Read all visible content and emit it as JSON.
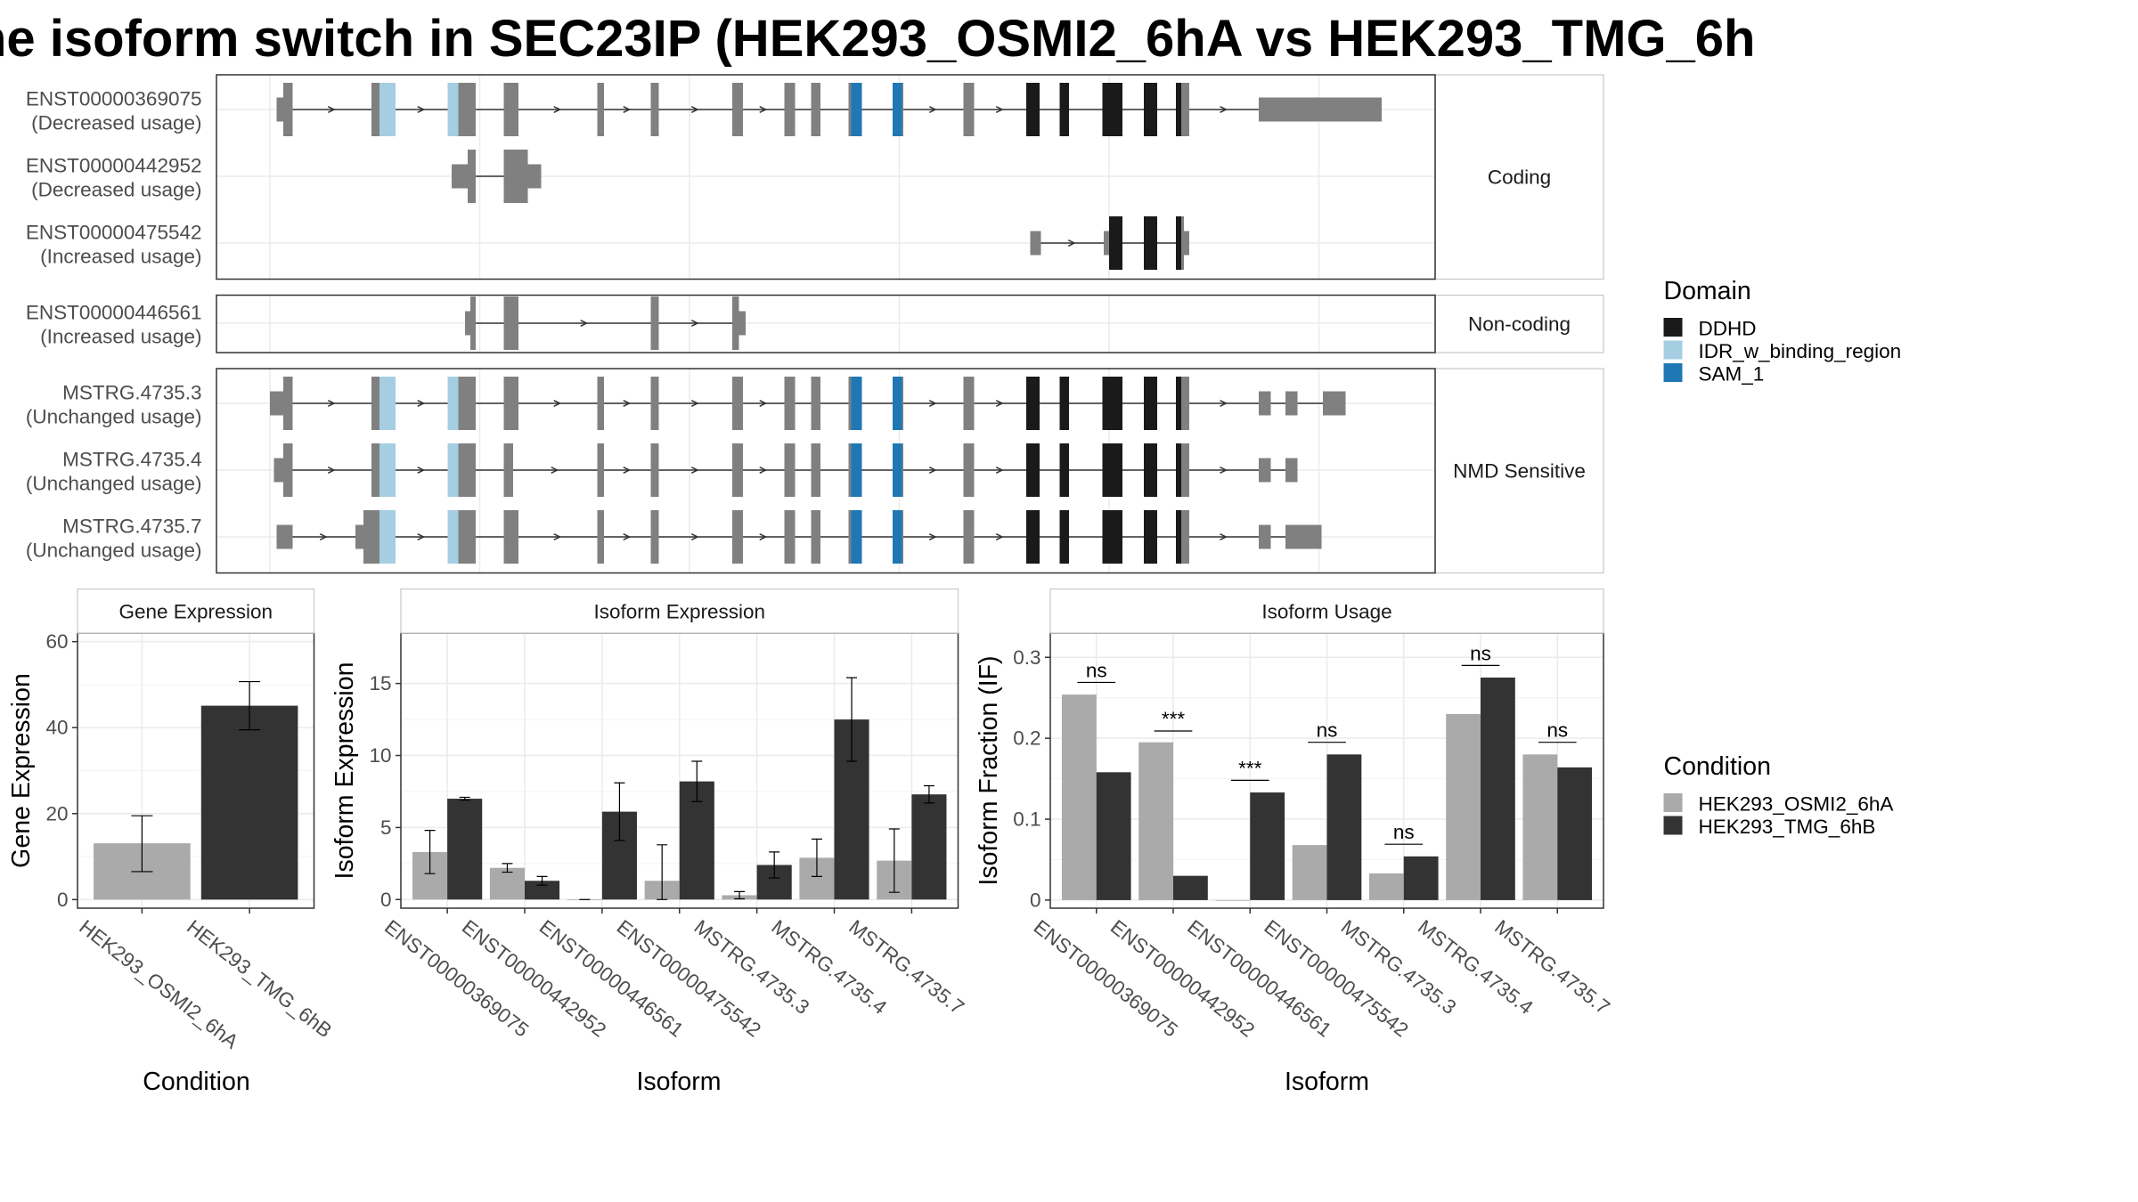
{
  "title": "ne isoform switch in SEC23IP (HEK293_OSMI2_6hA vs HEK293_TMG_6h",
  "colors": {
    "exon": "#808080",
    "utr": "#808080",
    "DDHD": "#1a1a1a",
    "IDR_w_binding_region": "#a6cee3",
    "SAM_1": "#1f78b4",
    "cond1": "#aaaaaa",
    "cond2": "#333333"
  },
  "structure": {
    "sections": [
      {
        "name": "Coding",
        "label": "Coding",
        "transcripts": [
          "ENST00000369075",
          "ENST00000442952",
          "ENST00000475542"
        ]
      },
      {
        "name": "Non-coding",
        "label": "Non-coding",
        "transcripts": [
          "ENST00000446561"
        ]
      },
      {
        "name": "NMD Sensitive",
        "label": "NMD Sensitive",
        "transcripts": [
          "MSTRG.4735.3",
          "MSTRG.4735.4",
          "MSTRG.4735.7"
        ]
      }
    ],
    "transcripts": [
      {
        "id": "ENST00000369075",
        "usage": "(Decreased usage)",
        "xmin": 210,
        "xmax": 1034,
        "utr": [
          [
            207,
            219
          ],
          [
            942,
            1034
          ]
        ],
        "exons": [
          [
            212,
            219
          ],
          [
            278,
            296
          ],
          [
            335,
            356
          ],
          [
            377,
            388
          ],
          [
            447,
            452
          ],
          [
            487,
            493
          ],
          [
            548,
            556
          ],
          [
            587,
            595
          ],
          [
            607,
            614
          ],
          [
            635,
            645
          ],
          [
            668,
            676
          ],
          [
            721,
            729
          ],
          [
            768,
            778
          ],
          [
            793,
            800
          ],
          [
            825,
            840
          ],
          [
            856,
            866
          ],
          [
            880,
            886
          ],
          [
            886,
            890
          ]
        ],
        "domains": [
          {
            "type": "IDR_w_binding_region",
            "span": [
              284,
              296
            ]
          },
          {
            "type": "IDR_w_binding_region",
            "span": [
              335,
              343
            ]
          },
          {
            "type": "SAM_1",
            "span": [
              637,
              645
            ]
          },
          {
            "type": "SAM_1",
            "span": [
              668,
              675
            ]
          },
          {
            "type": "DDHD",
            "span": [
              768,
              778
            ]
          },
          {
            "type": "DDHD",
            "span": [
              793,
              800
            ]
          },
          {
            "type": "DDHD",
            "span": [
              825,
              840
            ]
          },
          {
            "type": "DDHD",
            "span": [
              856,
              866
            ]
          },
          {
            "type": "DDHD",
            "span": [
              880,
              884
            ]
          }
        ]
      },
      {
        "id": "ENST00000442952",
        "usage": "(Decreased usage)",
        "xmin": 338,
        "xmax": 405,
        "utr": [
          [
            338,
            350
          ],
          [
            395,
            405
          ]
        ],
        "exons": [
          [
            350,
            356
          ],
          [
            377,
            395
          ]
        ],
        "domains": []
      },
      {
        "id": "ENST00000475542",
        "usage": "(Increased usage)",
        "xmin": 771,
        "xmax": 890,
        "utr": [
          [
            771,
            779
          ],
          [
            826,
            830
          ],
          [
            886,
            890
          ]
        ],
        "exons": [
          [
            830,
            840
          ],
          [
            856,
            866
          ],
          [
            880,
            886
          ]
        ],
        "domains": [
          {
            "type": "DDHD",
            "span": [
              830,
              840
            ]
          },
          {
            "type": "DDHD",
            "span": [
              856,
              866
            ]
          },
          {
            "type": "DDHD",
            "span": [
              880,
              884
            ]
          }
        ]
      },
      {
        "id": "ENST00000446561",
        "usage": "(Increased usage)",
        "xmin": 348,
        "xmax": 558,
        "utr": [
          [
            348,
            352
          ],
          [
            553,
            558
          ]
        ],
        "exons": [
          [
            352,
            356
          ],
          [
            377,
            388
          ],
          [
            487,
            493
          ],
          [
            548,
            553
          ]
        ],
        "domains": []
      },
      {
        "id": "MSTRG.4735.3",
        "usage": "(Unchanged usage)",
        "xmin": 202,
        "xmax": 1007,
        "utr": [
          [
            202,
            212
          ],
          [
            942,
            951
          ],
          [
            962,
            971
          ],
          [
            990,
            1007
          ]
        ],
        "exons": [
          [
            212,
            219
          ],
          [
            278,
            296
          ],
          [
            335,
            356
          ],
          [
            377,
            388
          ],
          [
            447,
            452
          ],
          [
            487,
            493
          ],
          [
            548,
            556
          ],
          [
            587,
            595
          ],
          [
            607,
            614
          ],
          [
            635,
            645
          ],
          [
            668,
            676
          ],
          [
            721,
            729
          ],
          [
            768,
            778
          ],
          [
            793,
            800
          ],
          [
            825,
            840
          ],
          [
            856,
            866
          ],
          [
            880,
            886
          ],
          [
            886,
            890
          ]
        ],
        "domains": [
          {
            "type": "IDR_w_binding_region",
            "span": [
              284,
              296
            ]
          },
          {
            "type": "IDR_w_binding_region",
            "span": [
              335,
              343
            ]
          },
          {
            "type": "SAM_1",
            "span": [
              637,
              645
            ]
          },
          {
            "type": "SAM_1",
            "span": [
              668,
              675
            ]
          },
          {
            "type": "DDHD",
            "span": [
              768,
              778
            ]
          },
          {
            "type": "DDHD",
            "span": [
              793,
              800
            ]
          },
          {
            "type": "DDHD",
            "span": [
              825,
              840
            ]
          },
          {
            "type": "DDHD",
            "span": [
              856,
              866
            ]
          },
          {
            "type": "DDHD",
            "span": [
              880,
              884
            ]
          }
        ]
      },
      {
        "id": "MSTRG.4735.4",
        "usage": "(Unchanged usage)",
        "xmin": 205,
        "xmax": 971,
        "utr": [
          [
            205,
            212
          ],
          [
            942,
            951
          ],
          [
            962,
            971
          ]
        ],
        "exons": [
          [
            212,
            219
          ],
          [
            278,
            296
          ],
          [
            335,
            356
          ],
          [
            377,
            384
          ],
          [
            447,
            452
          ],
          [
            487,
            493
          ],
          [
            548,
            556
          ],
          [
            587,
            595
          ],
          [
            607,
            614
          ],
          [
            635,
            645
          ],
          [
            668,
            676
          ],
          [
            721,
            729
          ],
          [
            768,
            778
          ],
          [
            793,
            800
          ],
          [
            825,
            840
          ],
          [
            856,
            866
          ],
          [
            880,
            886
          ],
          [
            886,
            890
          ]
        ],
        "domains": [
          {
            "type": "IDR_w_binding_region",
            "span": [
              284,
              296
            ]
          },
          {
            "type": "IDR_w_binding_region",
            "span": [
              335,
              343
            ]
          },
          {
            "type": "SAM_1",
            "span": [
              637,
              645
            ]
          },
          {
            "type": "SAM_1",
            "span": [
              668,
              675
            ]
          },
          {
            "type": "DDHD",
            "span": [
              768,
              778
            ]
          },
          {
            "type": "DDHD",
            "span": [
              793,
              800
            ]
          },
          {
            "type": "DDHD",
            "span": [
              825,
              840
            ]
          },
          {
            "type": "DDHD",
            "span": [
              856,
              866
            ]
          },
          {
            "type": "DDHD",
            "span": [
              880,
              884
            ]
          }
        ]
      },
      {
        "id": "MSTRG.4735.7",
        "usage": "(Unchanged usage)",
        "xmin": 207,
        "xmax": 989,
        "utr": [
          [
            207,
            219
          ],
          [
            266,
            272
          ],
          [
            942,
            951
          ],
          [
            962,
            989
          ]
        ],
        "exons": [
          [
            272,
            296
          ],
          [
            335,
            356
          ],
          [
            377,
            388
          ],
          [
            447,
            452
          ],
          [
            487,
            493
          ],
          [
            548,
            556
          ],
          [
            587,
            595
          ],
          [
            607,
            614
          ],
          [
            635,
            645
          ],
          [
            668,
            676
          ],
          [
            721,
            729
          ],
          [
            768,
            778
          ],
          [
            793,
            800
          ],
          [
            825,
            840
          ],
          [
            856,
            866
          ],
          [
            880,
            886
          ],
          [
            886,
            890
          ]
        ],
        "domains": [
          {
            "type": "IDR_w_binding_region",
            "span": [
              284,
              296
            ]
          },
          {
            "type": "IDR_w_binding_region",
            "span": [
              335,
              343
            ]
          },
          {
            "type": "SAM_1",
            "span": [
              637,
              645
            ]
          },
          {
            "type": "SAM_1",
            "span": [
              668,
              675
            ]
          },
          {
            "type": "DDHD",
            "span": [
              768,
              778
            ]
          },
          {
            "type": "DDHD",
            "span": [
              793,
              800
            ]
          },
          {
            "type": "DDHD",
            "span": [
              825,
              840
            ]
          },
          {
            "type": "DDHD",
            "span": [
              856,
              866
            ]
          },
          {
            "type": "DDHD",
            "span": [
              880,
              884
            ]
          }
        ]
      }
    ]
  },
  "legends": {
    "domain": {
      "title": "Domain",
      "items": [
        {
          "label": "DDHD",
          "key": "DDHD"
        },
        {
          "label": "IDR_w_binding_region",
          "key": "IDR_w_binding_region"
        },
        {
          "label": "SAM_1",
          "key": "SAM_1"
        }
      ]
    },
    "condition": {
      "title": "Condition",
      "items": [
        {
          "label": "HEK293_OSMI2_6hA",
          "key": "cond1"
        },
        {
          "label": "HEK293_TMG_6hB",
          "key": "cond2"
        }
      ]
    }
  },
  "chart_data": [
    {
      "type": "bar",
      "title": "Gene Expression",
      "xlabel": "Condition",
      "ylabel": "Gene Expression",
      "ylim": [
        -2,
        62
      ],
      "yticks": [
        0,
        20,
        40,
        60
      ],
      "categories": [
        "HEK293_OSMI2_6hA",
        "HEK293_TMG_6hB"
      ],
      "values": [
        13.1,
        45.1
      ],
      "error": [
        [
          6.5,
          19.5
        ],
        [
          39.5,
          50.7
        ]
      ],
      "grid": true
    },
    {
      "type": "bar",
      "title": "Isoform Expression",
      "xlabel": "Isoform",
      "ylabel": "Isoform Expression",
      "ylim": [
        -0.6,
        18.5
      ],
      "yticks": [
        0,
        5,
        10,
        15
      ],
      "categories": [
        "ENST00000369075",
        "ENST00000442952",
        "ENST00000446561",
        "ENST00000475542",
        "MSTRG.4735.3",
        "MSTRG.4735.4",
        "MSTRG.4735.7"
      ],
      "series": [
        {
          "name": "HEK293_OSMI2_6hA",
          "values": [
            3.3,
            2.2,
            0.0,
            1.3,
            0.3,
            2.9,
            2.7
          ],
          "error": [
            [
              1.8,
              4.8
            ],
            [
              1.9,
              2.5
            ],
            [
              0.0,
              0.0
            ],
            [
              0.0,
              3.8
            ],
            [
              0.05,
              0.55
            ],
            [
              1.6,
              4.2
            ],
            [
              0.5,
              4.9
            ]
          ]
        },
        {
          "name": "HEK293_TMG_6hB",
          "values": [
            7.0,
            1.3,
            6.1,
            8.2,
            2.4,
            12.5,
            7.3
          ],
          "error": [
            [
              6.9,
              7.1
            ],
            [
              1.0,
              1.6
            ],
            [
              4.1,
              8.1
            ],
            [
              6.8,
              9.6
            ],
            [
              1.5,
              3.3
            ],
            [
              9.6,
              15.4
            ],
            [
              6.7,
              7.9
            ]
          ]
        }
      ],
      "grid": true
    },
    {
      "type": "bar",
      "title": "Isoform Usage",
      "xlabel": "Isoform",
      "ylabel": "Isoform Fraction (IF)",
      "ylim": [
        -0.01,
        0.33
      ],
      "yticks": [
        0.0,
        0.1,
        0.2,
        0.3
      ],
      "categories": [
        "ENST00000369075",
        "ENST00000442952",
        "ENST00000446561",
        "ENST00000475542",
        "MSTRG.4735.3",
        "MSTRG.4735.4",
        "MSTRG.4735.7"
      ],
      "series": [
        {
          "name": "HEK293_OSMI2_6hA",
          "values": [
            0.254,
            0.195,
            0.0,
            0.068,
            0.033,
            0.23,
            0.18
          ]
        },
        {
          "name": "HEK293_TMG_6hB",
          "values": [
            0.158,
            0.03,
            0.133,
            0.18,
            0.054,
            0.275,
            0.164
          ]
        }
      ],
      "annotations": [
        {
          "category": "ENST00000369075",
          "text": "ns",
          "y": 0.269
        },
        {
          "category": "ENST00000442952",
          "text": "***",
          "y": 0.209
        },
        {
          "category": "ENST00000446561",
          "text": "***",
          "y": 0.148
        },
        {
          "category": "ENST00000475542",
          "text": "ns",
          "y": 0.195
        },
        {
          "category": "MSTRG.4735.3",
          "text": "ns",
          "y": 0.069
        },
        {
          "category": "MSTRG.4735.4",
          "text": "ns",
          "y": 0.29
        },
        {
          "category": "MSTRG.4735.7",
          "text": "ns",
          "y": 0.195
        }
      ],
      "grid": true
    }
  ]
}
